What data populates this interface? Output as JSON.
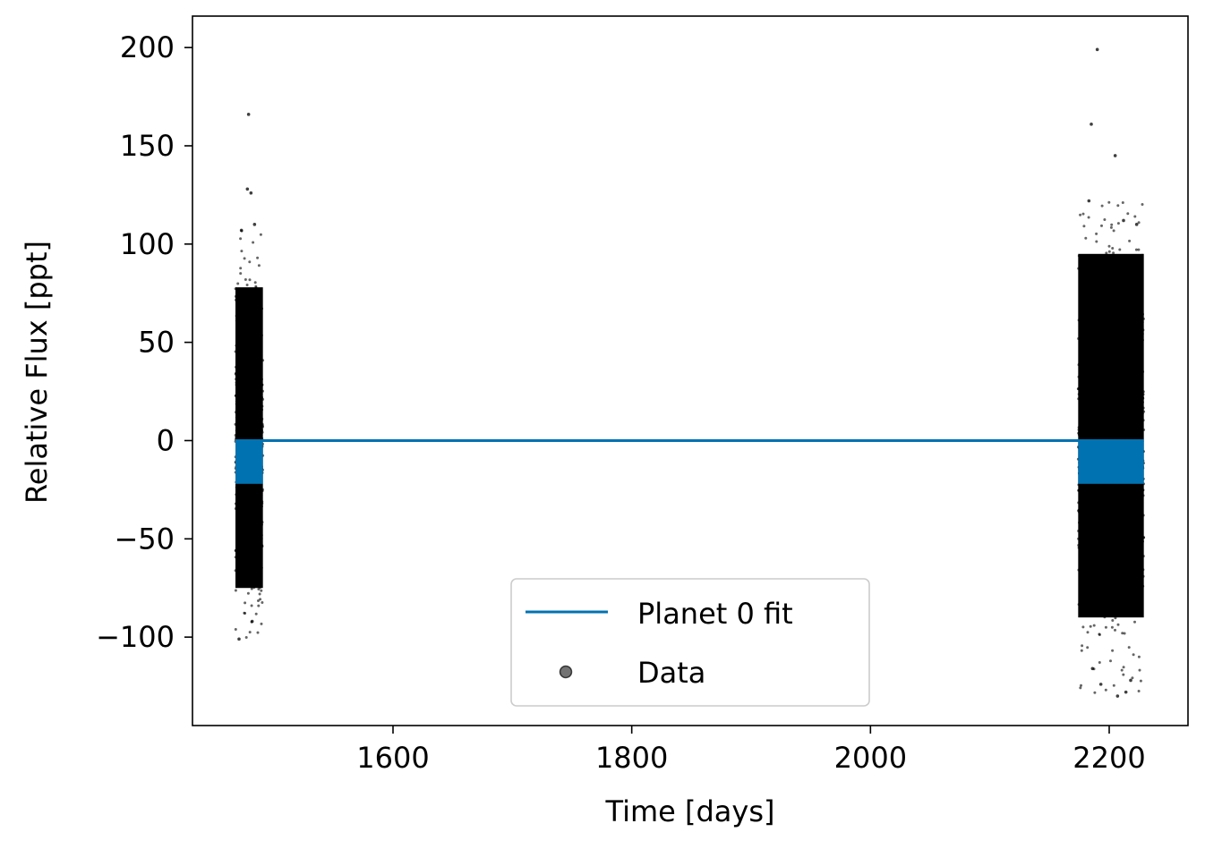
{
  "chart_data": {
    "type": "scatter",
    "title": "",
    "xlabel": "Time [days]",
    "ylabel": "Relative Flux [ppt]",
    "xlim": [
      1432,
      2266
    ],
    "ylim": [
      -145,
      216
    ],
    "xticks": [
      1600,
      1800,
      2000,
      2200
    ],
    "yticks": [
      200,
      150,
      100,
      50,
      0,
      -50,
      -100
    ],
    "xtick_labels": [
      "1600",
      "1800",
      "2000",
      "2200"
    ],
    "ytick_labels": [
      "200",
      "150",
      "100",
      "50",
      "0",
      "−50",
      "−100"
    ],
    "grid": false,
    "legend": {
      "placement": "lower center",
      "entries": [
        {
          "label": "Planet 0 fit",
          "marker": "line",
          "color": "#0072B2"
        },
        {
          "label": "Data",
          "marker": "dot",
          "color": "#000000"
        }
      ]
    },
    "series": [
      {
        "name": "Planet 0 fit",
        "kind": "line",
        "color": "#0072B2",
        "baseline": 0,
        "transit_depth": -22,
        "dense_transit_segments": [
          [
            1468,
            1491
          ],
          [
            2174,
            2229
          ]
        ],
        "x_range": [
          1468,
          2229
        ]
      },
      {
        "name": "Data",
        "kind": "scatter",
        "color": "#000000",
        "segments": [
          {
            "x_range": [
              1468,
              1491
            ],
            "core_range": [
              -75,
              78
            ],
            "extent": [
              -101,
              110
            ]
          },
          {
            "x_range": [
              2174,
              2229
            ],
            "core_range": [
              -90,
              95
            ],
            "extent": [
              -130,
              122
            ]
          }
        ],
        "outliers": [
          {
            "x": 1479,
            "y": 166
          },
          {
            "x": 1478,
            "y": 128
          },
          {
            "x": 1481,
            "y": 126
          },
          {
            "x": 1484,
            "y": 110
          },
          {
            "x": 1473,
            "y": 107
          },
          {
            "x": 1471,
            "y": -101
          },
          {
            "x": 1482,
            "y": -92
          },
          {
            "x": 2190,
            "y": 199
          },
          {
            "x": 2185,
            "y": 161
          },
          {
            "x": 2205,
            "y": 145
          },
          {
            "x": 2183,
            "y": 122
          },
          {
            "x": 2212,
            "y": 112
          },
          {
            "x": 2223,
            "y": 110
          },
          {
            "x": 2207,
            "y": -130
          },
          {
            "x": 2214,
            "y": -128
          },
          {
            "x": 2218,
            "y": -122
          },
          {
            "x": 2193,
            "y": -124
          },
          {
            "x": 2186,
            "y": -116
          }
        ]
      }
    ]
  }
}
